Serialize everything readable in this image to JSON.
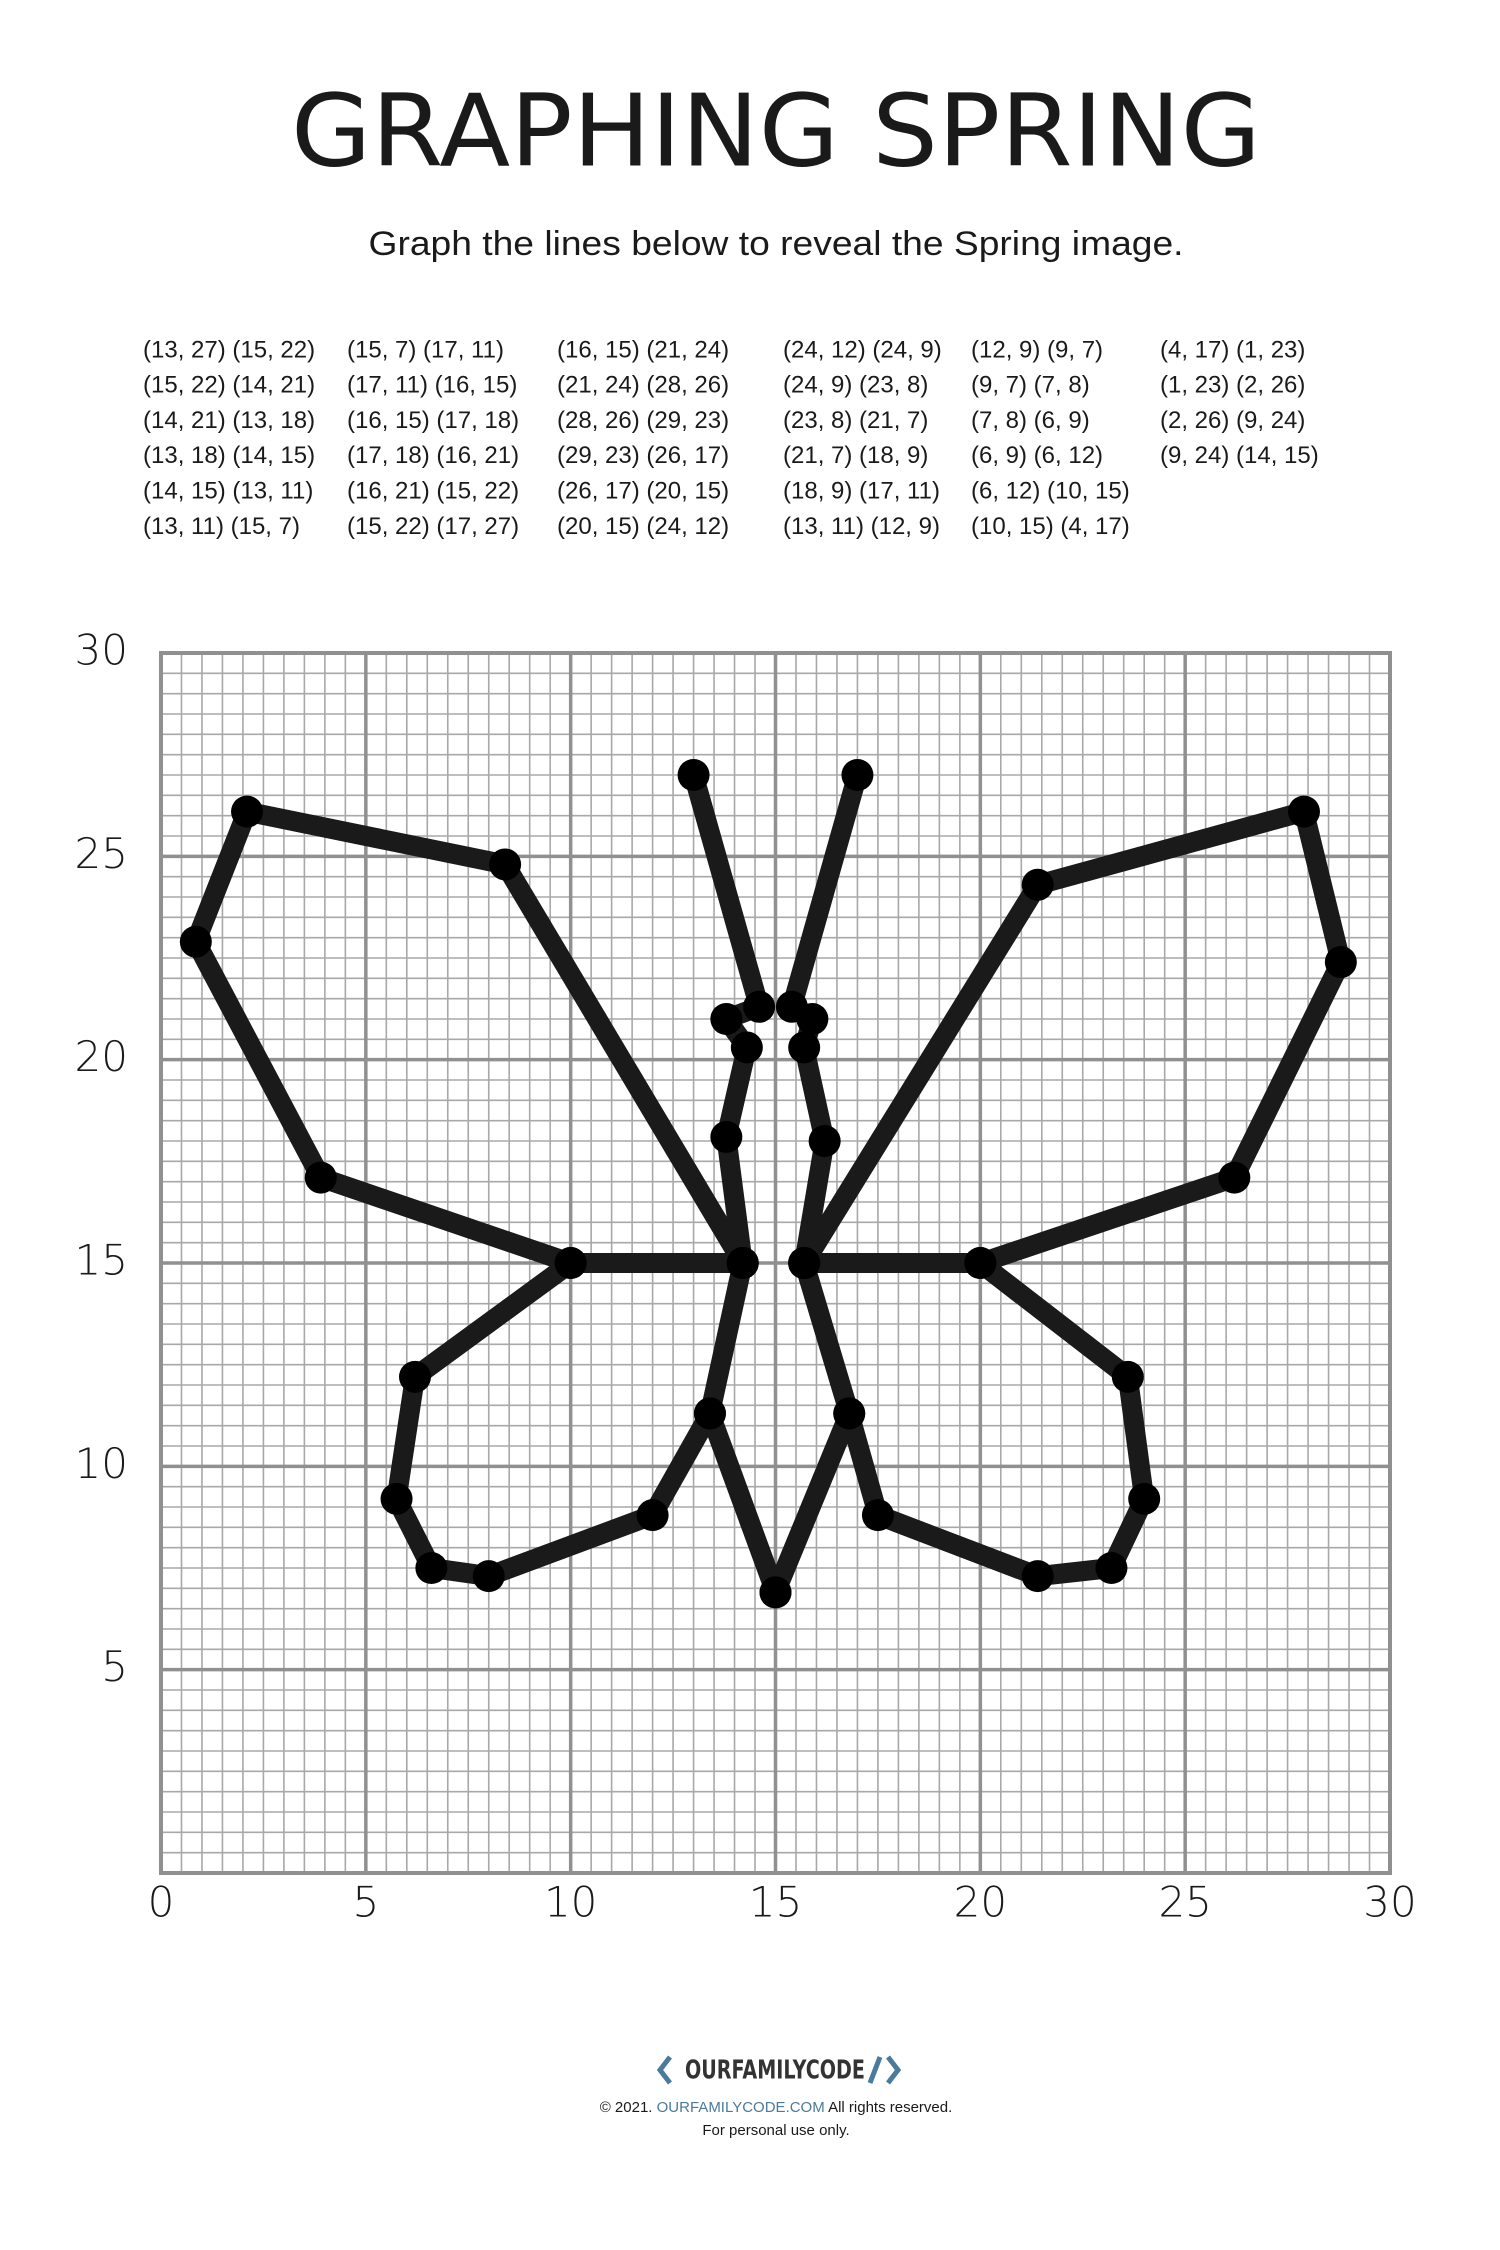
{
  "header": {
    "title": "GRAPHING SPRING",
    "subtitle": "Graph the lines below to reveal the Spring image."
  },
  "coordinates": [
    [
      "(13, 27) (15, 22)",
      "(15, 22) (14, 21)",
      "(14, 21) (13, 18)",
      "(13, 18) (14, 15)",
      "(14, 15) (13, 11)",
      "(13, 11) (15, 7)"
    ],
    [
      "(15, 7) (17, 11)",
      "(17, 11) (16, 15)",
      "(16, 15) (17, 18)",
      "(17, 18) (16, 21)",
      "(16, 21) (15, 22)",
      "(15, 22) (17, 27)"
    ],
    [
      "(16, 15) (21, 24)",
      "(21, 24) (28, 26)",
      "(28, 26) (29, 23)",
      "(29, 23) (26, 17)",
      "(26, 17) (20, 15)",
      "(20, 15) (24, 12)"
    ],
    [
      "(24, 12) (24, 9)",
      "(24, 9) (23, 8)",
      "(23, 8) (21, 7)",
      "(21, 7) (18, 9)",
      "(18, 9) (17, 11)",
      "(13, 11) (12, 9)"
    ],
    [
      "(12, 9) (9, 7)",
      "(9, 7) (7, 8)",
      "(7, 8) (6, 9)",
      "(6, 9) (6, 12)",
      "(6, 12) (10, 15)",
      "(10, 15) (4, 17)"
    ],
    [
      "(4, 17) (1, 23)",
      "(1, 23) (2, 26)",
      "(2, 26) (9, 24)",
      "(9, 24) (14, 15)"
    ]
  ],
  "graph": {
    "xlim": [
      0,
      30
    ],
    "ylim": [
      0,
      30
    ],
    "xticks": [
      0,
      5,
      10,
      15,
      20,
      25,
      30
    ],
    "yticks": [
      5,
      10,
      15,
      20,
      25,
      30
    ],
    "color": "#1a1a1a",
    "lines": [
      {
        "x": [
          13,
          14.6,
          13.8,
          14.3,
          13.8,
          14.2,
          13.4,
          15
        ],
        "y": [
          27,
          21.3,
          21,
          20.3,
          18.1,
          15,
          11.3,
          6.9
        ]
      },
      {
        "x": [
          17,
          15.4,
          15.9,
          15.7,
          16.2,
          15.7,
          16.8,
          15
        ],
        "y": [
          27,
          21.3,
          21,
          20.3,
          18,
          15,
          11.3,
          6.9
        ]
      },
      {
        "x": [
          14.2,
          8.4,
          2.1,
          0.85,
          3.9,
          10,
          14.2
        ],
        "y": [
          15,
          24.8,
          26.1,
          22.9,
          17.1,
          15,
          15
        ]
      },
      {
        "x": [
          10,
          6.2,
          5.75,
          6.6,
          8,
          12,
          13.4
        ],
        "y": [
          15,
          12.2,
          9.2,
          7.5,
          7.3,
          8.8,
          11.3
        ]
      },
      {
        "x": [
          15.7,
          21.4,
          27.9,
          28.8,
          26.2,
          20,
          15.7
        ],
        "y": [
          15,
          24.3,
          26.1,
          22.4,
          17.1,
          15,
          15
        ]
      },
      {
        "x": [
          20,
          23.6,
          24,
          23.2,
          21.4,
          17.5,
          16.8
        ],
        "y": [
          15,
          12.2,
          9.2,
          7.5,
          7.3,
          8.8,
          11.3
        ]
      }
    ]
  },
  "footer": {
    "logo": "OURFAMILYCODE",
    "copyright": "© 2021.",
    "site": "OURFAMILYCODE.COM",
    "rights": "All rights reserved.",
    "note": "For personal use only."
  }
}
